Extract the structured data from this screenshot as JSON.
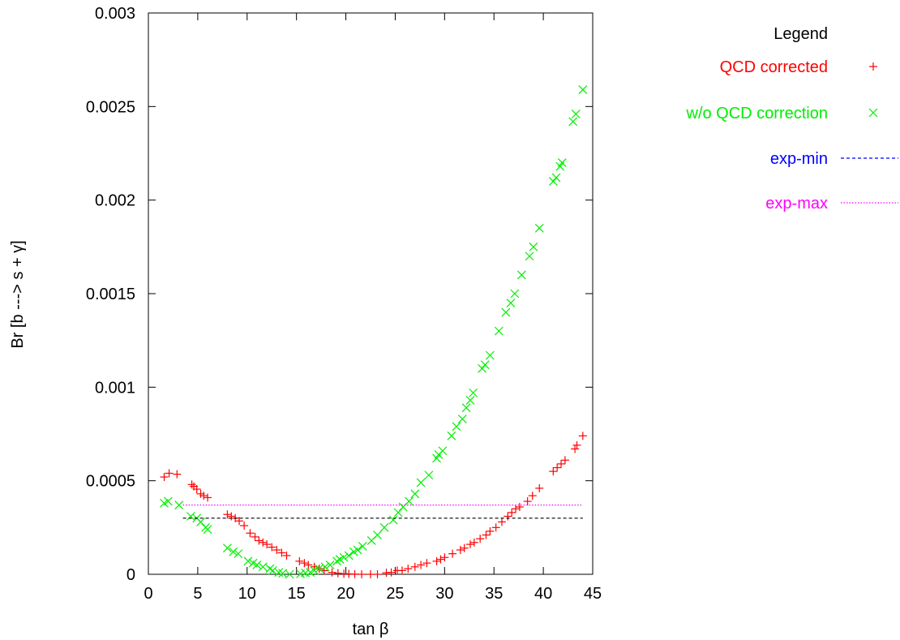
{
  "chart_data": {
    "type": "scatter",
    "xlabel": "tan β",
    "ylabel": "Br [b ---> s + γ]",
    "xlim": [
      0,
      45
    ],
    "ylim": [
      0,
      0.003
    ],
    "x_ticks": [
      0,
      5,
      10,
      15,
      20,
      25,
      30,
      35,
      40,
      45
    ],
    "y_ticks": [
      0,
      0.0005,
      0.001,
      0.0015,
      0.002,
      0.0025,
      0.003
    ],
    "y_tick_labels": [
      "0",
      "0.0005",
      "0.001",
      "0.0015",
      "0.002",
      "0.0025",
      "0.003"
    ],
    "grid": false,
    "legend": {
      "title": "Legend",
      "position": "outside-right"
    },
    "series": [
      {
        "name": "QCD corrected",
        "marker": "plus",
        "color": "#ff0000",
        "x": [
          1.6,
          2.1,
          2.9,
          4.4,
          4.6,
          4.9,
          5.3,
          5.6,
          6.0,
          8.0,
          8.4,
          8.8,
          9.2,
          9.7,
          10.3,
          10.8,
          11.2,
          11.6,
          12.0,
          12.5,
          13.0,
          13.5,
          14.0,
          15.3,
          15.8,
          16.2,
          16.8,
          17.3,
          17.8,
          18.6,
          19.2,
          19.8,
          20.3,
          20.9,
          21.6,
          22.5,
          23.2,
          24.1,
          24.6,
          25.2,
          25.7,
          26.3,
          27.0,
          27.6,
          28.2,
          29.2,
          29.6,
          30.0,
          30.8,
          31.6,
          32.0,
          32.6,
          33.0,
          33.6,
          34.2,
          34.6,
          35.2,
          35.8,
          36.4,
          36.8,
          37.2,
          37.6,
          38.4,
          38.9,
          39.6,
          41.0,
          41.4,
          41.8,
          42.2,
          43.2,
          43.4,
          44.0
        ],
        "y": [
          0.00052,
          0.00054,
          0.000535,
          0.00048,
          0.00047,
          0.000455,
          0.00043,
          0.00042,
          0.00041,
          0.00032,
          0.00031,
          0.0003,
          0.000285,
          0.00026,
          0.00022,
          0.0002,
          0.00018,
          0.00017,
          0.00016,
          0.000145,
          0.00013,
          0.000115,
          0.0001,
          7e-05,
          6e-05,
          5e-05,
          4e-05,
          3e-05,
          2e-05,
          1e-05,
          6e-06,
          3e-06,
          2e-06,
          1e-06,
          0.0,
          0.0,
          0.0,
          8e-06,
          1e-05,
          2e-05,
          2e-05,
          3e-05,
          4e-05,
          5e-05,
          6e-05,
          7e-05,
          8e-05,
          9e-05,
          0.00011,
          0.00013,
          0.00014,
          0.00016,
          0.00017,
          0.00019,
          0.00021,
          0.00023,
          0.00025,
          0.00028,
          0.00031,
          0.00033,
          0.00035,
          0.00036,
          0.00039,
          0.00042,
          0.00046,
          0.00055,
          0.00057,
          0.00059,
          0.00061,
          0.00067,
          0.00069,
          0.00074
        ]
      },
      {
        "name": "w/o QCD correction",
        "marker": "cross",
        "color": "#00ee00",
        "x": [
          1.6,
          2.0,
          3.1,
          4.3,
          4.9,
          5.3,
          5.8,
          6.0,
          8.0,
          8.6,
          9.1,
          10.1,
          10.6,
          11.0,
          11.6,
          12.3,
          12.6,
          13.2,
          13.6,
          14.3,
          15.4,
          15.9,
          16.4,
          16.8,
          17.3,
          17.9,
          18.4,
          19.1,
          19.4,
          19.8,
          20.3,
          20.8,
          21.2,
          21.7,
          22.6,
          23.2,
          23.9,
          24.8,
          25.3,
          25.8,
          26.4,
          27.0,
          27.6,
          28.4,
          29.2,
          29.4,
          29.8,
          30.7,
          31.2,
          31.8,
          32.2,
          32.6,
          32.9,
          33.8,
          34.1,
          34.6,
          35.5,
          36.2,
          36.7,
          37.1,
          37.8,
          38.6,
          39.0,
          39.6,
          41.0,
          41.3,
          41.7,
          41.9,
          43.0,
          43.3,
          44.0
        ],
        "y": [
          0.00038,
          0.00039,
          0.00037,
          0.00031,
          0.0003,
          0.00028,
          0.00025,
          0.00024,
          0.00014,
          0.00012,
          0.00011,
          7e-05,
          6e-05,
          5e-05,
          4e-05,
          3e-05,
          2e-05,
          1e-05,
          5e-06,
          0.0,
          3e-06,
          7e-06,
          1e-05,
          2e-05,
          3e-05,
          4e-05,
          5e-05,
          7e-05,
          8e-05,
          9e-05,
          0.0001,
          0.00012,
          0.00013,
          0.00015,
          0.00018,
          0.00021,
          0.00025,
          0.00029,
          0.00033,
          0.00036,
          0.00039,
          0.00043,
          0.00049,
          0.00053,
          0.00062,
          0.00064,
          0.00066,
          0.00074,
          0.00079,
          0.00083,
          0.00089,
          0.00093,
          0.00097,
          0.0011,
          0.00112,
          0.00117,
          0.0013,
          0.0014,
          0.00145,
          0.0015,
          0.0016,
          0.0017,
          0.00175,
          0.00185,
          0.0021,
          0.00212,
          0.00218,
          0.0022,
          0.00242,
          0.00246,
          0.00259
        ]
      },
      {
        "name": "exp-min",
        "marker": "dashed-line",
        "color": "#0000ff",
        "legend_color": "#0000ff",
        "drawn_color": "#000000",
        "x": [
          3.5,
          44.0
        ],
        "y": [
          0.0003,
          0.0003
        ]
      },
      {
        "name": "exp-max",
        "marker": "dotted-line",
        "color": "#ff00ff",
        "x": [
          3.5,
          44.0
        ],
        "y": [
          0.00037,
          0.00037
        ]
      }
    ]
  }
}
